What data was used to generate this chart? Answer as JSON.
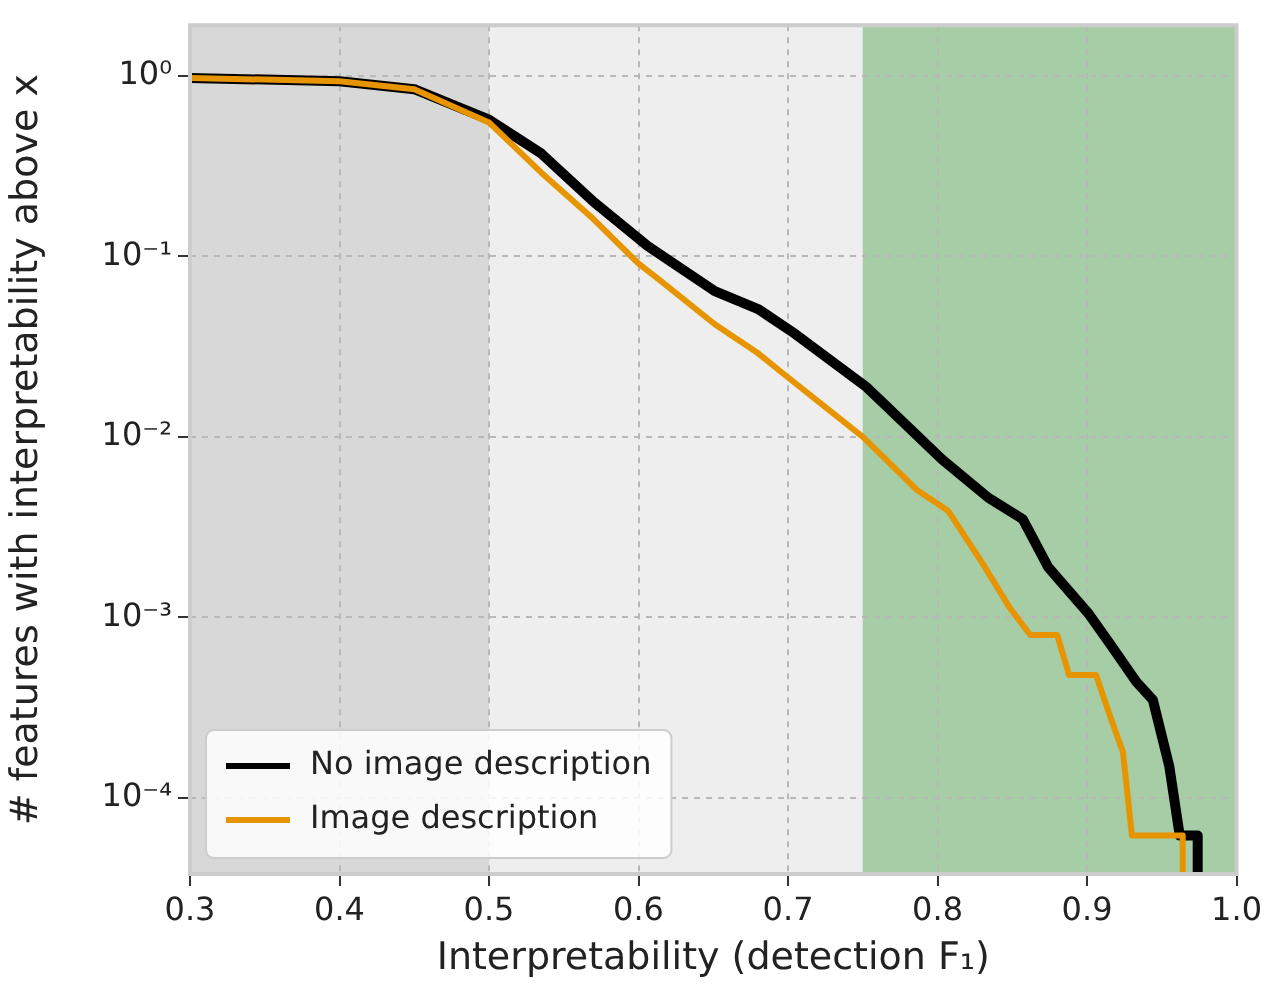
{
  "chart_data": {
    "type": "line",
    "xlabel": "Interpretability (detection F₁)",
    "ylabel": "# features with interpretability above x",
    "xlim": [
      0.3,
      1.0
    ],
    "xticks": [
      0.3,
      0.4,
      0.5,
      0.6,
      0.7,
      0.8,
      0.9,
      {
        "value": 1,
        "label": "1.0"
      }
    ],
    "ylim": [
      3.8e-05,
      1.9
    ],
    "yticks": [
      {
        "value": 1,
        "label": "10⁰"
      },
      {
        "value": 0.1,
        "label": "10⁻¹"
      },
      {
        "value": 0.01,
        "label": "10⁻²"
      },
      {
        "value": 0.001,
        "label": "10⁻³"
      },
      {
        "value": 0.0001,
        "label": "10⁻⁴"
      }
    ],
    "log": "y",
    "grid": true,
    "legend": "bottom left",
    "line_style": "solid",
    "marker": "none",
    "bands": [
      {
        "axis": "x",
        "from": 0.3,
        "to": 0.5,
        "color": "#d8d8d8"
      },
      {
        "axis": "x",
        "from": 0.75,
        "to": 1.0,
        "color": "#a6cda6"
      }
    ],
    "series": [
      {
        "name": "No image description",
        "color": "#000000",
        "x": [
          0.3,
          0.4,
          0.45,
          0.5,
          0.535,
          0.57,
          0.606,
          0.651,
          0.68,
          0.705,
          0.752,
          0.803,
          0.834,
          0.857,
          0.874,
          0.901,
          0.915,
          0.933,
          0.944,
          0.955,
          0.962,
          0.974,
          0.974
        ],
        "values": [
          0.97,
          0.93,
          0.84,
          0.57,
          0.37,
          0.2,
          0.114,
          0.064,
          0.051,
          0.037,
          0.019,
          0.0075,
          0.0046,
          0.0035,
          0.0019,
          0.00105,
          0.00072,
          0.00044,
          0.00035,
          0.00015,
          6.2e-05,
          6.2e-05,
          3.8e-05
        ]
      },
      {
        "name": "Image description",
        "color": "#e69500",
        "x": [
          0.3,
          0.4,
          0.45,
          0.5,
          0.535,
          0.57,
          0.6,
          0.614,
          0.651,
          0.68,
          0.695,
          0.75,
          0.786,
          0.807,
          0.83,
          0.848,
          0.862,
          0.88,
          0.888,
          0.906,
          0.915,
          0.924,
          0.93,
          0.964,
          0.964
        ],
        "values": [
          0.97,
          0.93,
          0.84,
          0.55,
          0.29,
          0.16,
          0.091,
          0.074,
          0.042,
          0.029,
          0.023,
          0.01,
          0.0051,
          0.0039,
          0.002,
          0.00114,
          0.0008,
          0.0008,
          0.00048,
          0.00048,
          0.00029,
          0.00018,
          6.2e-05,
          6.2e-05,
          3.8e-05
        ]
      }
    ]
  }
}
